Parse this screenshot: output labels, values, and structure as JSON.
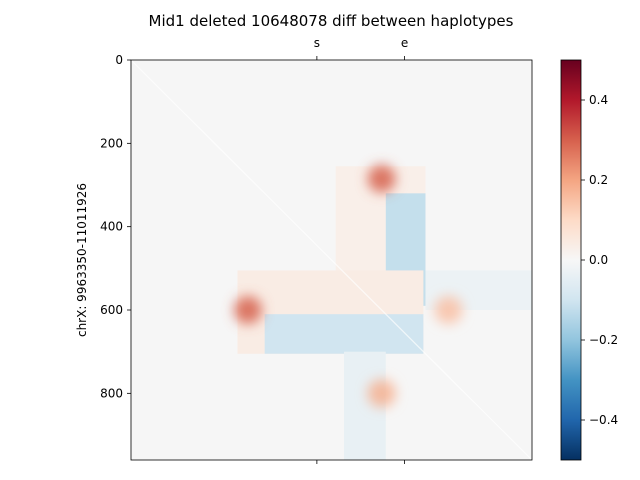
{
  "chart_data": {
    "type": "heatmap",
    "title": "Mid1 deleted 10648078 diff between haplotypes",
    "ylabel": "chrX: 9963350-11011926",
    "xlabel": "",
    "ylim": [
      0,
      960
    ],
    "y_ticks": [
      0,
      200,
      400,
      600,
      800
    ],
    "top_ticks": [
      {
        "label": "s",
        "pos": 445
      },
      {
        "label": "e",
        "pos": 655
      }
    ],
    "bottom_ticks": [
      445,
      655
    ],
    "colorbar": {
      "colormap": "RdBu_r",
      "range": [
        -0.5,
        0.5
      ],
      "ticks": [
        0.4,
        0.2,
        0.0,
        -0.2,
        -0.4
      ],
      "tick_labels": [
        "0.4",
        "0.2",
        "0.0",
        "−0.2",
        "−0.4"
      ]
    },
    "background_value": 0.0,
    "blocks": [
      {
        "name": "upper-stripe",
        "x": [
          490,
          705
        ],
        "y": [
          255,
          555
        ],
        "value": 0.03
      },
      {
        "name": "upper-stripe-blue",
        "x": [
          610,
          705
        ],
        "y": [
          320,
          590
        ],
        "value": -0.12
      },
      {
        "name": "left-stripe",
        "x": [
          255,
          700
        ],
        "y": [
          505,
          705
        ],
        "value": 0.04
      },
      {
        "name": "left-stripe-blue",
        "x": [
          320,
          700
        ],
        "y": [
          610,
          705
        ],
        "value": -0.1
      },
      {
        "name": "right-stripe",
        "x": [
          705,
          960
        ],
        "y": [
          505,
          600
        ],
        "value": -0.03
      },
      {
        "name": "lower-stripe",
        "x": [
          510,
          610
        ],
        "y": [
          700,
          960
        ],
        "value": -0.04
      }
    ],
    "hotspots": [
      {
        "x": 600,
        "y": 285,
        "value": 0.3
      },
      {
        "x": 280,
        "y": 600,
        "value": 0.3
      },
      {
        "x": 760,
        "y": 600,
        "value": 0.15
      },
      {
        "x": 600,
        "y": 800,
        "value": 0.18
      }
    ]
  }
}
